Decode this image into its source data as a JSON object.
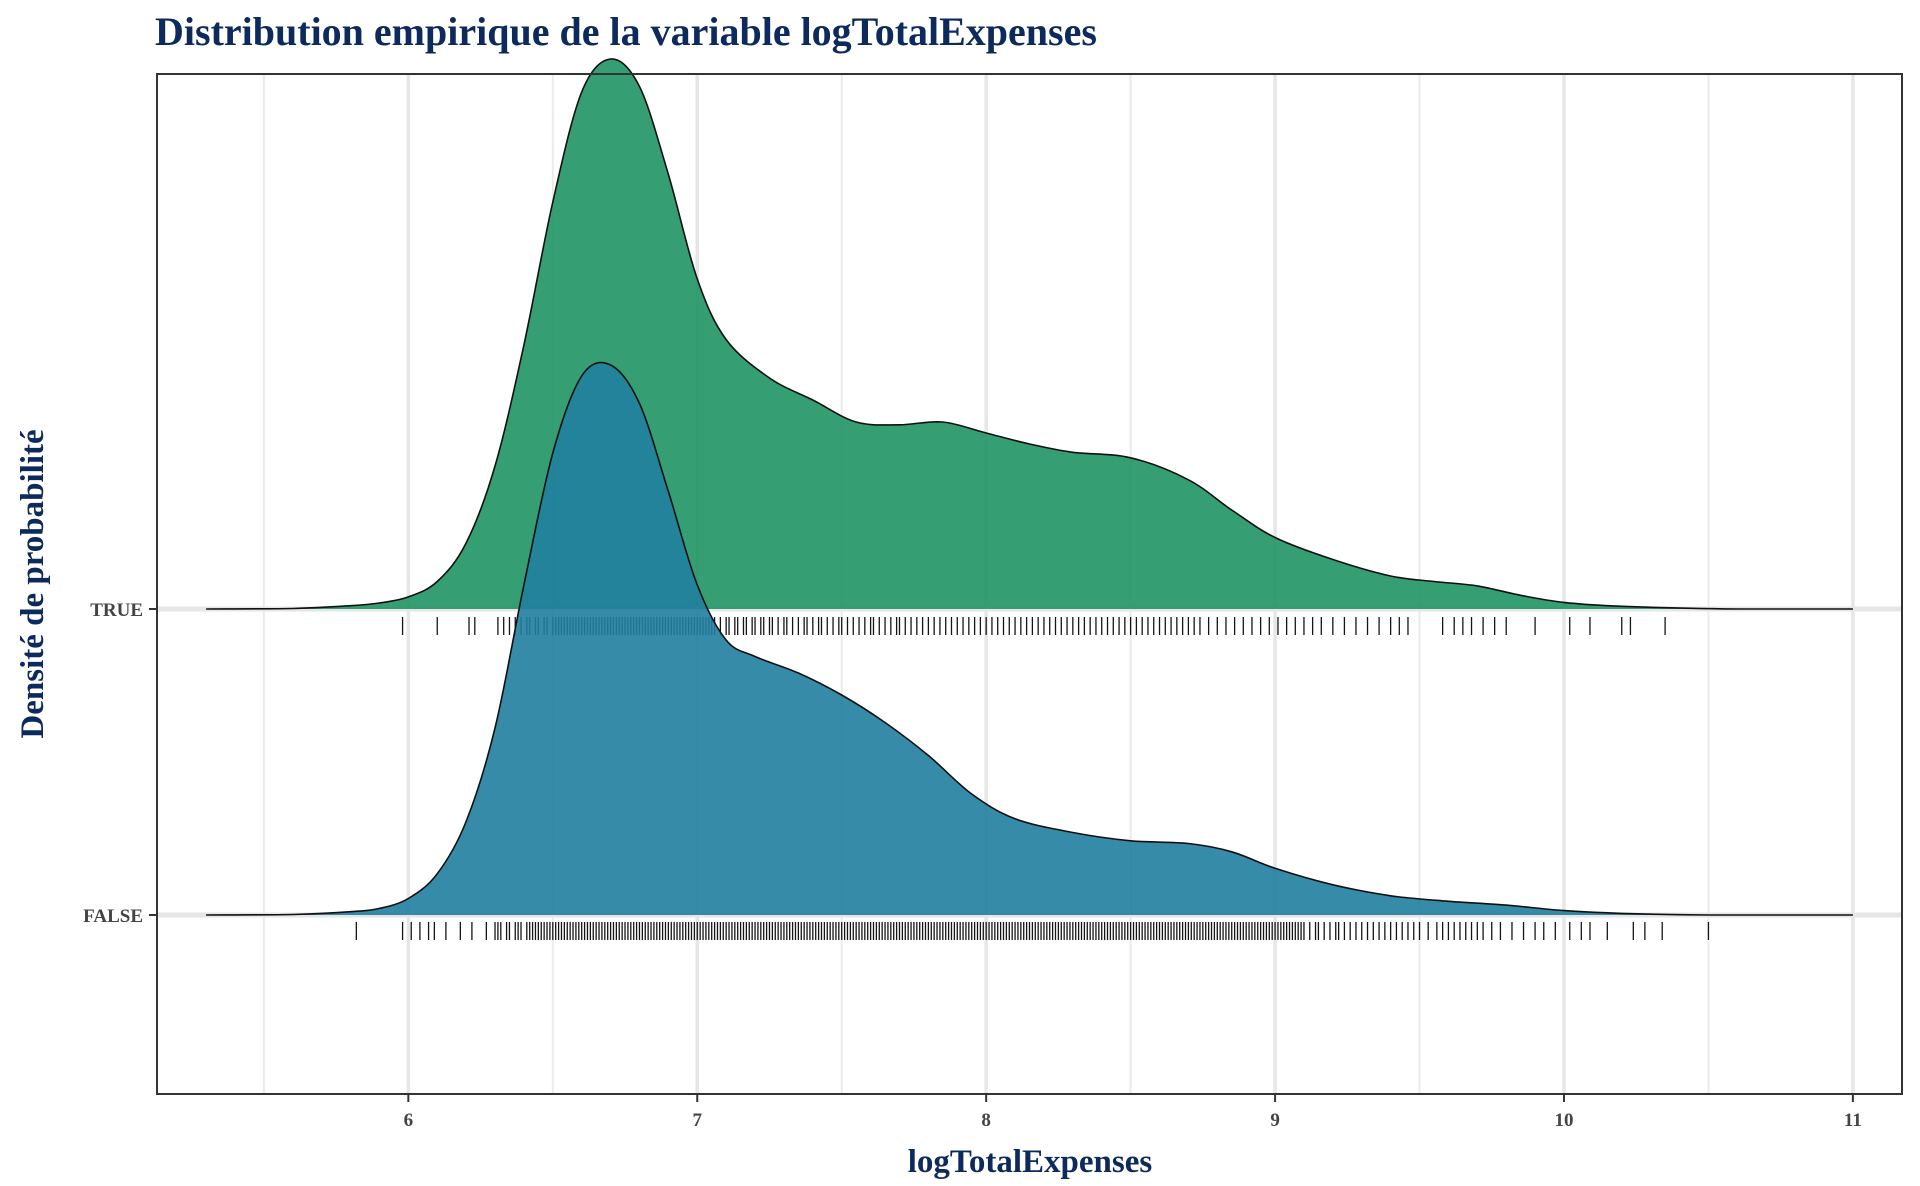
{
  "chart_data": {
    "type": "ridgeline",
    "title": "Distribution empirique de la variable logTotalExpenses",
    "xlabel": "logTotalExpenses",
    "ylabel": "Densité de probabilité",
    "xlim": [
      5.13,
      11.17
    ],
    "x_ticks": [
      6,
      7,
      8,
      9,
      10,
      11
    ],
    "x_minor_ticks": [
      5.5,
      6.5,
      7.5,
      8.5,
      9.5,
      10.5
    ],
    "y_categories": [
      "FALSE",
      "TRUE"
    ],
    "grid": true,
    "legend": "none",
    "series": [
      {
        "name": "FALSE",
        "color": "#207f9e",
        "opacity": 0.9,
        "density": [
          [
            5.3,
            0.0
          ],
          [
            5.6,
            0.001
          ],
          [
            5.8,
            0.006
          ],
          [
            5.9,
            0.012
          ],
          [
            6.0,
            0.03
          ],
          [
            6.1,
            0.075
          ],
          [
            6.2,
            0.17
          ],
          [
            6.3,
            0.34
          ],
          [
            6.4,
            0.6
          ],
          [
            6.5,
            0.84
          ],
          [
            6.6,
            0.98
          ],
          [
            6.7,
            1.0
          ],
          [
            6.8,
            0.93
          ],
          [
            6.9,
            0.77
          ],
          [
            7.0,
            0.6
          ],
          [
            7.1,
            0.5
          ],
          [
            7.2,
            0.47
          ],
          [
            7.35,
            0.44
          ],
          [
            7.5,
            0.4
          ],
          [
            7.65,
            0.35
          ],
          [
            7.8,
            0.29
          ],
          [
            7.95,
            0.22
          ],
          [
            8.1,
            0.175
          ],
          [
            8.3,
            0.15
          ],
          [
            8.5,
            0.135
          ],
          [
            8.7,
            0.13
          ],
          [
            8.85,
            0.115
          ],
          [
            9.0,
            0.085
          ],
          [
            9.2,
            0.055
          ],
          [
            9.4,
            0.035
          ],
          [
            9.6,
            0.025
          ],
          [
            9.8,
            0.018
          ],
          [
            10.0,
            0.008
          ],
          [
            10.2,
            0.003
          ],
          [
            10.5,
            0.0
          ],
          [
            11.0,
            0.0
          ]
        ],
        "rug": [
          5.82,
          5.98,
          6.01,
          6.04,
          6.07,
          6.09,
          6.13,
          6.18,
          6.22,
          6.27,
          6.3,
          6.31,
          6.32,
          6.34,
          6.35,
          6.37,
          6.38,
          6.39,
          6.41,
          6.42,
          6.43,
          6.44,
          6.45,
          6.46,
          6.47,
          6.48,
          6.49,
          6.5,
          6.51,
          6.52,
          6.53,
          6.54,
          6.55,
          6.56,
          6.57,
          6.58,
          6.59,
          6.6,
          6.61,
          6.62,
          6.63,
          6.64,
          6.65,
          6.66,
          6.67,
          6.68,
          6.69,
          6.7,
          6.71,
          6.72,
          6.73,
          6.74,
          6.75,
          6.76,
          6.77,
          6.78,
          6.79,
          6.8,
          6.81,
          6.82,
          6.83,
          6.84,
          6.85,
          6.86,
          6.87,
          6.88,
          6.89,
          6.9,
          6.91,
          6.92,
          6.93,
          6.94,
          6.95,
          6.96,
          6.97,
          6.98,
          6.99,
          7.0,
          7.01,
          7.02,
          7.03,
          7.04,
          7.05,
          7.06,
          7.07,
          7.08,
          7.09,
          7.1,
          7.11,
          7.12,
          7.13,
          7.14,
          7.15,
          7.16,
          7.17,
          7.18,
          7.19,
          7.2,
          7.21,
          7.22,
          7.23,
          7.24,
          7.25,
          7.26,
          7.27,
          7.28,
          7.29,
          7.3,
          7.31,
          7.32,
          7.33,
          7.34,
          7.35,
          7.36,
          7.37,
          7.38,
          7.39,
          7.4,
          7.41,
          7.42,
          7.43,
          7.44,
          7.45,
          7.46,
          7.47,
          7.48,
          7.49,
          7.5,
          7.51,
          7.52,
          7.53,
          7.54,
          7.55,
          7.56,
          7.57,
          7.58,
          7.59,
          7.6,
          7.61,
          7.62,
          7.63,
          7.64,
          7.65,
          7.66,
          7.67,
          7.68,
          7.69,
          7.7,
          7.71,
          7.72,
          7.73,
          7.74,
          7.75,
          7.76,
          7.77,
          7.78,
          7.79,
          7.8,
          7.81,
          7.82,
          7.83,
          7.84,
          7.85,
          7.86,
          7.87,
          7.88,
          7.89,
          7.9,
          7.91,
          7.92,
          7.93,
          7.94,
          7.95,
          7.96,
          7.97,
          7.98,
          7.99,
          8.0,
          8.01,
          8.02,
          8.03,
          8.04,
          8.05,
          8.06,
          8.07,
          8.08,
          8.09,
          8.1,
          8.11,
          8.12,
          8.13,
          8.14,
          8.15,
          8.16,
          8.17,
          8.18,
          8.19,
          8.2,
          8.21,
          8.22,
          8.23,
          8.24,
          8.25,
          8.26,
          8.27,
          8.28,
          8.29,
          8.3,
          8.31,
          8.32,
          8.33,
          8.34,
          8.35,
          8.36,
          8.37,
          8.38,
          8.39,
          8.4,
          8.41,
          8.42,
          8.43,
          8.44,
          8.45,
          8.46,
          8.47,
          8.48,
          8.49,
          8.5,
          8.51,
          8.52,
          8.53,
          8.54,
          8.55,
          8.56,
          8.57,
          8.58,
          8.59,
          8.6,
          8.61,
          8.62,
          8.63,
          8.64,
          8.65,
          8.66,
          8.67,
          8.68,
          8.69,
          8.7,
          8.71,
          8.72,
          8.73,
          8.74,
          8.75,
          8.76,
          8.77,
          8.78,
          8.79,
          8.8,
          8.81,
          8.82,
          8.83,
          8.84,
          8.85,
          8.86,
          8.87,
          8.88,
          8.89,
          8.9,
          8.91,
          8.92,
          8.93,
          8.94,
          8.95,
          8.96,
          8.97,
          8.98,
          8.99,
          9.0,
          9.01,
          9.02,
          9.03,
          9.04,
          9.05,
          9.06,
          9.07,
          9.08,
          9.09,
          9.1,
          9.12,
          9.14,
          9.15,
          9.17,
          9.19,
          9.21,
          9.22,
          9.24,
          9.26,
          9.28,
          9.3,
          9.32,
          9.34,
          9.36,
          9.38,
          9.4,
          9.42,
          9.44,
          9.46,
          9.48,
          9.5,
          9.53,
          9.56,
          9.58,
          9.6,
          9.62,
          9.64,
          9.66,
          9.68,
          9.7,
          9.72,
          9.75,
          9.78,
          9.82,
          9.86,
          9.9,
          9.93,
          9.97,
          10.02,
          10.06,
          10.09,
          10.15,
          10.24,
          10.28,
          10.34,
          10.5
        ]
      },
      {
        "name": "TRUE",
        "color": "#1f9564",
        "opacity": 0.9,
        "density": [
          [
            5.3,
            0.0
          ],
          [
            5.6,
            0.001
          ],
          [
            5.8,
            0.006
          ],
          [
            5.9,
            0.011
          ],
          [
            6.0,
            0.022
          ],
          [
            6.1,
            0.05
          ],
          [
            6.2,
            0.12
          ],
          [
            6.3,
            0.26
          ],
          [
            6.4,
            0.48
          ],
          [
            6.5,
            0.74
          ],
          [
            6.6,
            0.94
          ],
          [
            6.7,
            1.0
          ],
          [
            6.8,
            0.95
          ],
          [
            6.9,
            0.79
          ],
          [
            7.0,
            0.6
          ],
          [
            7.1,
            0.49
          ],
          [
            7.25,
            0.42
          ],
          [
            7.4,
            0.38
          ],
          [
            7.55,
            0.34
          ],
          [
            7.7,
            0.335
          ],
          [
            7.85,
            0.34
          ],
          [
            8.0,
            0.32
          ],
          [
            8.15,
            0.3
          ],
          [
            8.3,
            0.285
          ],
          [
            8.5,
            0.275
          ],
          [
            8.7,
            0.235
          ],
          [
            8.85,
            0.18
          ],
          [
            9.0,
            0.13
          ],
          [
            9.2,
            0.09
          ],
          [
            9.4,
            0.06
          ],
          [
            9.55,
            0.05
          ],
          [
            9.7,
            0.042
          ],
          [
            9.85,
            0.025
          ],
          [
            10.0,
            0.012
          ],
          [
            10.2,
            0.005
          ],
          [
            10.6,
            0.0
          ],
          [
            11.0,
            0.0
          ]
        ],
        "rug": [
          5.98,
          6.1,
          6.21,
          6.23,
          6.31,
          6.33,
          6.35,
          6.37,
          6.39,
          6.41,
          6.42,
          6.44,
          6.45,
          6.47,
          6.48,
          6.5,
          6.51,
          6.52,
          6.53,
          6.54,
          6.55,
          6.56,
          6.57,
          6.58,
          6.59,
          6.6,
          6.61,
          6.62,
          6.63,
          6.64,
          6.65,
          6.66,
          6.67,
          6.68,
          6.69,
          6.7,
          6.71,
          6.72,
          6.73,
          6.74,
          6.75,
          6.76,
          6.77,
          6.78,
          6.79,
          6.8,
          6.81,
          6.82,
          6.83,
          6.84,
          6.85,
          6.86,
          6.87,
          6.88,
          6.89,
          6.9,
          6.91,
          6.92,
          6.93,
          6.94,
          6.95,
          6.96,
          6.97,
          6.98,
          6.99,
          7.0,
          7.01,
          7.02,
          7.03,
          7.04,
          7.05,
          7.06,
          7.08,
          7.1,
          7.11,
          7.13,
          7.14,
          7.16,
          7.17,
          7.19,
          7.2,
          7.22,
          7.23,
          7.25,
          7.26,
          7.28,
          7.3,
          7.31,
          7.33,
          7.35,
          7.37,
          7.38,
          7.4,
          7.42,
          7.43,
          7.45,
          7.47,
          7.49,
          7.5,
          7.52,
          7.54,
          7.56,
          7.58,
          7.6,
          7.61,
          7.63,
          7.65,
          7.67,
          7.69,
          7.7,
          7.72,
          7.74,
          7.76,
          7.78,
          7.8,
          7.82,
          7.84,
          7.86,
          7.88,
          7.9,
          7.92,
          7.94,
          7.96,
          7.98,
          8.0,
          8.02,
          8.04,
          8.06,
          8.08,
          8.1,
          8.12,
          8.14,
          8.16,
          8.18,
          8.2,
          8.22,
          8.24,
          8.26,
          8.28,
          8.3,
          8.32,
          8.34,
          8.36,
          8.38,
          8.4,
          8.42,
          8.44,
          8.46,
          8.48,
          8.5,
          8.52,
          8.54,
          8.56,
          8.58,
          8.6,
          8.62,
          8.64,
          8.66,
          8.68,
          8.7,
          8.72,
          8.74,
          8.77,
          8.8,
          8.83,
          8.86,
          8.89,
          8.92,
          8.95,
          8.98,
          9.01,
          9.04,
          9.07,
          9.1,
          9.13,
          9.16,
          9.2,
          9.24,
          9.28,
          9.32,
          9.36,
          9.4,
          9.43,
          9.46,
          9.58,
          9.62,
          9.65,
          9.68,
          9.72,
          9.76,
          9.8,
          9.9,
          10.02,
          10.09,
          10.2,
          10.23,
          10.35
        ]
      }
    ]
  }
}
